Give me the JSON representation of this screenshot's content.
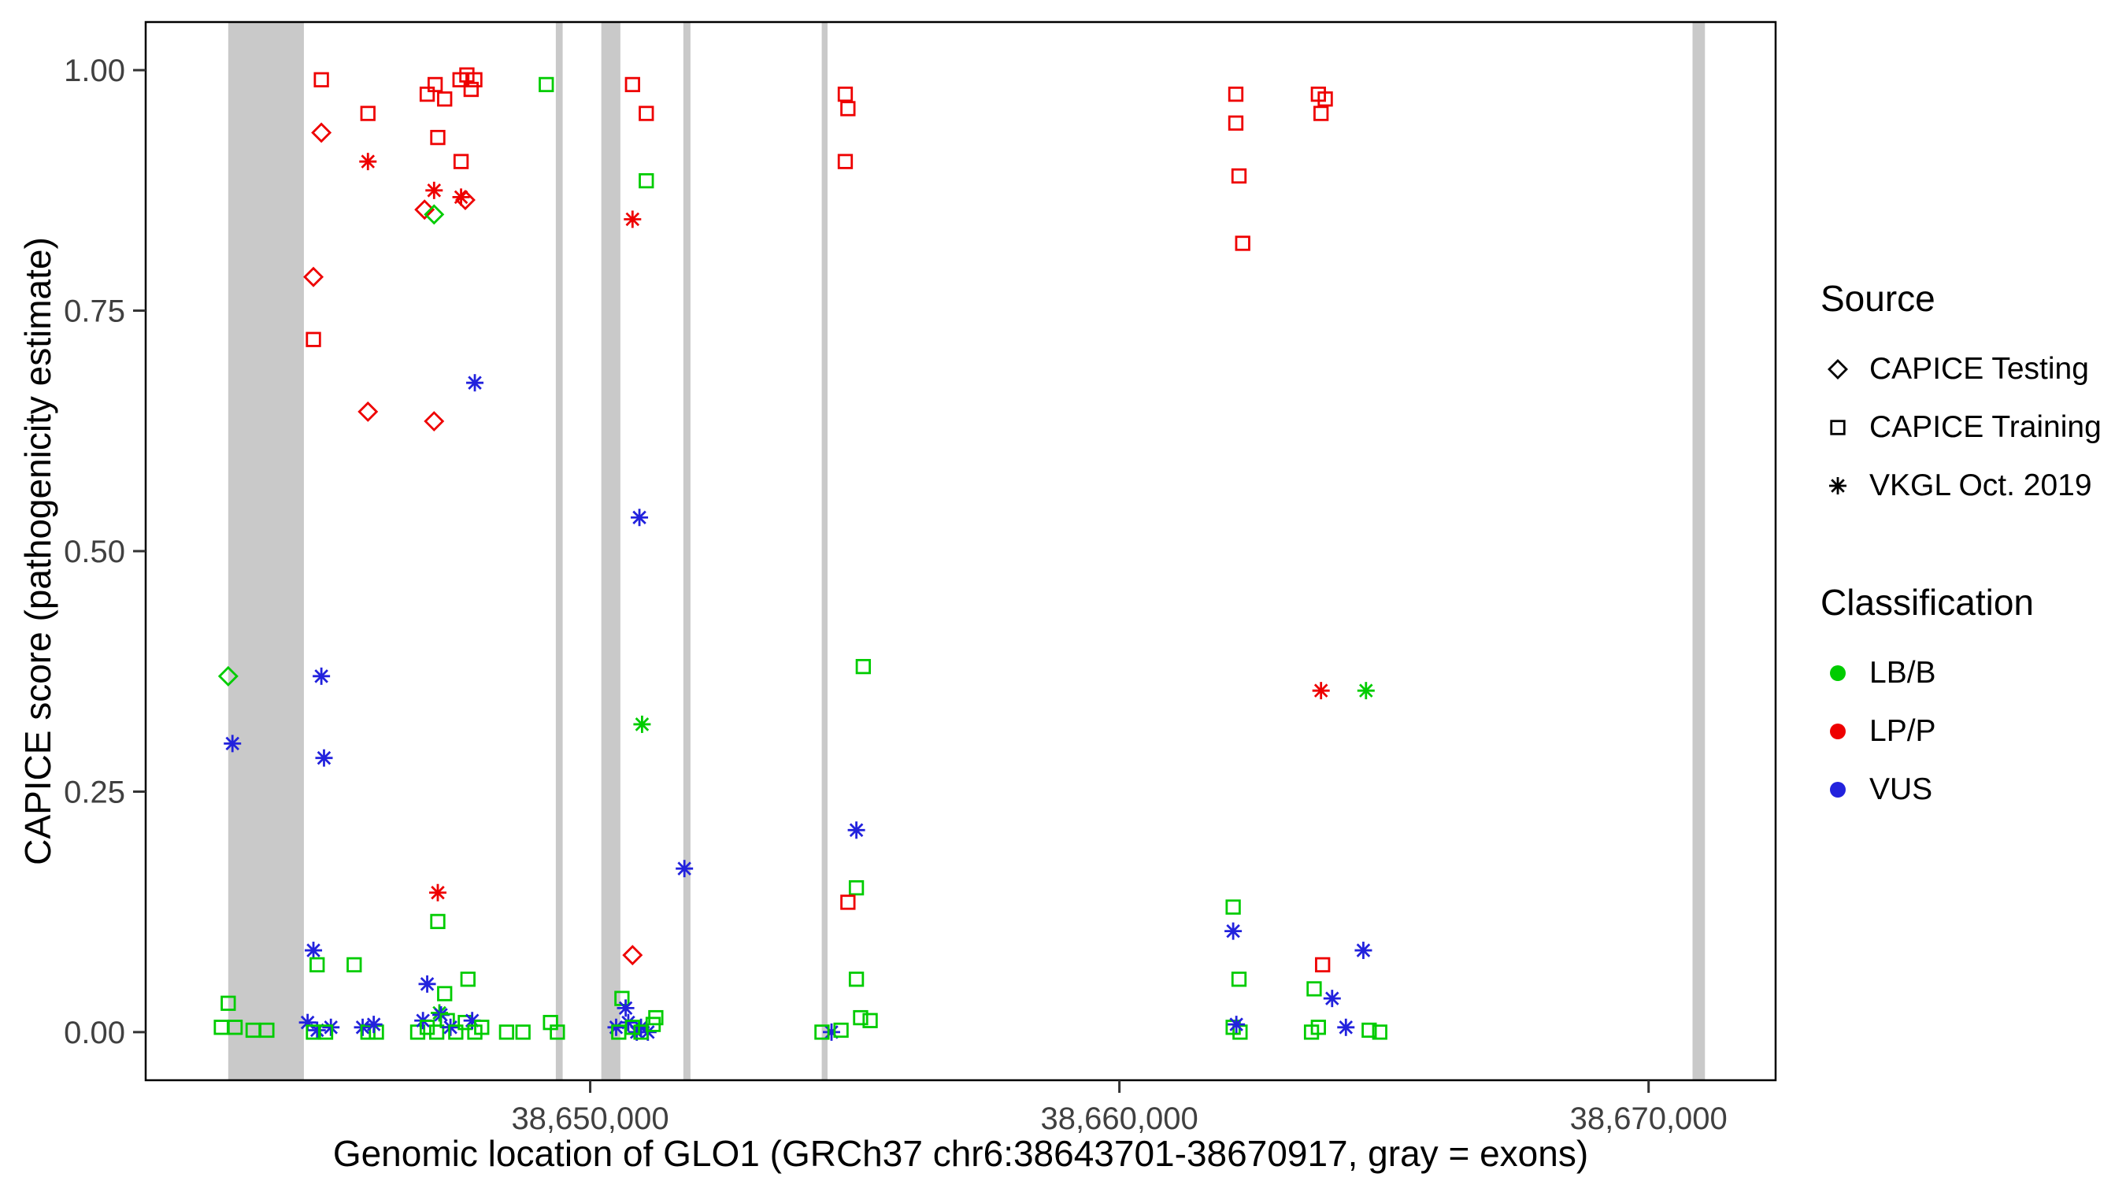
{
  "figure": {
    "legend": {
      "source": {
        "title": "Source",
        "items": [
          {
            "label": "CAPICE Testing",
            "shape": "diamond"
          },
          {
            "label": "CAPICE Training",
            "shape": "square"
          },
          {
            "label": "VKGL Oct. 2019",
            "shape": "asterisk"
          }
        ]
      },
      "classification": {
        "title": "Classification",
        "items": [
          {
            "label": "LB/B",
            "color": "#00CC00"
          },
          {
            "label": "LP/P",
            "color": "#EE0000"
          },
          {
            "label": "VUS",
            "color": "#2222DD"
          }
        ]
      }
    }
  },
  "chart_data": {
    "type": "scatter",
    "title": "",
    "xlabel": "Genomic location of GLO1 (GRCh37 chr6:38643701-38670917, gray = exons)",
    "ylabel": "CAPICE score (pathogenicity estimate)",
    "x_tick_labels": [
      "38,650,000",
      "38,660,000",
      "38,670,000"
    ],
    "x_tick_values": [
      38650000,
      38660000,
      38670000
    ],
    "y_tick_labels": [
      "0.00",
      "0.25",
      "0.50",
      "0.75",
      "1.00"
    ],
    "y_tick_values": [
      0,
      0.25,
      0.5,
      0.75,
      1.0
    ],
    "xlim": [
      38641600,
      38672400
    ],
    "ylim": [
      -0.05,
      1.05
    ],
    "grid": false,
    "legend_position": "right",
    "exon_color": "#C9C9C9",
    "exons": [
      [
        38643160,
        38644590
      ],
      [
        38649350,
        38649480
      ],
      [
        38650210,
        38650570
      ],
      [
        38651760,
        38651895
      ],
      [
        38654375,
        38654485
      ],
      [
        38670830,
        38671065
      ]
    ],
    "colors": {
      "LB/B": "#00CC00",
      "LP/P": "#EE0000",
      "VUS": "#2222DD"
    },
    "shapes": {
      "CAPICE Testing": "diamond",
      "CAPICE Training": "square",
      "VKGL Oct. 2019": "asterisk"
    },
    "points": [
      {
        "x": 38643160,
        "y": 0.37,
        "source": "CAPICE Testing",
        "class": "LB/B"
      },
      {
        "x": 38643240,
        "y": 0.3,
        "source": "VKGL Oct. 2019",
        "class": "VUS"
      },
      {
        "x": 38643160,
        "y": 0.03,
        "source": "CAPICE Training",
        "class": "LB/B"
      },
      {
        "x": 38643030,
        "y": 0.005,
        "source": "CAPICE Training",
        "class": "LB/B"
      },
      {
        "x": 38643290,
        "y": 0.005,
        "source": "CAPICE Training",
        "class": "LB/B"
      },
      {
        "x": 38643630,
        "y": 0.002,
        "source": "CAPICE Training",
        "class": "LB/B"
      },
      {
        "x": 38643890,
        "y": 0.002,
        "source": "CAPICE Training",
        "class": "LB/B"
      },
      {
        "x": 38644920,
        "y": 0.99,
        "source": "CAPICE Training",
        "class": "LP/P"
      },
      {
        "x": 38644920,
        "y": 0.935,
        "source": "CAPICE Testing",
        "class": "LP/P"
      },
      {
        "x": 38644770,
        "y": 0.785,
        "source": "CAPICE Testing",
        "class": "LP/P"
      },
      {
        "x": 38644770,
        "y": 0.72,
        "source": "CAPICE Training",
        "class": "LP/P"
      },
      {
        "x": 38644920,
        "y": 0.37,
        "source": "VKGL Oct. 2019",
        "class": "VUS"
      },
      {
        "x": 38644970,
        "y": 0.285,
        "source": "VKGL Oct. 2019",
        "class": "VUS"
      },
      {
        "x": 38644770,
        "y": 0.085,
        "source": "VKGL Oct. 2019",
        "class": "VUS"
      },
      {
        "x": 38644840,
        "y": 0.07,
        "source": "CAPICE Training",
        "class": "LB/B"
      },
      {
        "x": 38644660,
        "y": 0.01,
        "source": "VKGL Oct. 2019",
        "class": "VUS"
      },
      {
        "x": 38644840,
        "y": 0.002,
        "source": "VKGL Oct. 2019",
        "class": "VUS"
      },
      {
        "x": 38645100,
        "y": 0.005,
        "source": "VKGL Oct. 2019",
        "class": "VUS"
      },
      {
        "x": 38644770,
        "y": 0.0,
        "source": "CAPICE Training",
        "class": "LB/B"
      },
      {
        "x": 38645000,
        "y": 0.0,
        "source": "CAPICE Training",
        "class": "LB/B"
      },
      {
        "x": 38645800,
        "y": 0.955,
        "source": "CAPICE Training",
        "class": "LP/P"
      },
      {
        "x": 38645800,
        "y": 0.905,
        "source": "VKGL Oct. 2019",
        "class": "LP/P"
      },
      {
        "x": 38645800,
        "y": 0.645,
        "source": "CAPICE Testing",
        "class": "LP/P"
      },
      {
        "x": 38645540,
        "y": 0.07,
        "source": "CAPICE Training",
        "class": "LB/B"
      },
      {
        "x": 38645700,
        "y": 0.005,
        "source": "VKGL Oct. 2019",
        "class": "VUS"
      },
      {
        "x": 38645800,
        "y": 0.0,
        "source": "CAPICE Training",
        "class": "LB/B"
      },
      {
        "x": 38645960,
        "y": 0.0,
        "source": "CAPICE Training",
        "class": "LB/B"
      },
      {
        "x": 38645910,
        "y": 0.008,
        "source": "VKGL Oct. 2019",
        "class": "VUS"
      },
      {
        "x": 38646920,
        "y": 0.975,
        "source": "CAPICE Training",
        "class": "LP/P"
      },
      {
        "x": 38647070,
        "y": 0.985,
        "source": "CAPICE Training",
        "class": "LP/P"
      },
      {
        "x": 38647250,
        "y": 0.97,
        "source": "CAPICE Training",
        "class": "LP/P"
      },
      {
        "x": 38647540,
        "y": 0.99,
        "source": "CAPICE Training",
        "class": "LP/P"
      },
      {
        "x": 38647670,
        "y": 0.995,
        "source": "CAPICE Training",
        "class": "LP/P"
      },
      {
        "x": 38647750,
        "y": 0.98,
        "source": "CAPICE Training",
        "class": "LP/P"
      },
      {
        "x": 38647820,
        "y": 0.99,
        "source": "CAPICE Training",
        "class": "LP/P"
      },
      {
        "x": 38647120,
        "y": 0.93,
        "source": "CAPICE Training",
        "class": "LP/P"
      },
      {
        "x": 38647560,
        "y": 0.905,
        "source": "CAPICE Training",
        "class": "LP/P"
      },
      {
        "x": 38647050,
        "y": 0.875,
        "source": "VKGL Oct. 2019",
        "class": "LP/P"
      },
      {
        "x": 38647560,
        "y": 0.868,
        "source": "VKGL Oct. 2019",
        "class": "LP/P"
      },
      {
        "x": 38647640,
        "y": 0.865,
        "source": "CAPICE Testing",
        "class": "LP/P"
      },
      {
        "x": 38646870,
        "y": 0.855,
        "source": "CAPICE Testing",
        "class": "LP/P"
      },
      {
        "x": 38647050,
        "y": 0.85,
        "source": "CAPICE Testing",
        "class": "LB/B"
      },
      {
        "x": 38647050,
        "y": 0.635,
        "source": "CAPICE Testing",
        "class": "LP/P"
      },
      {
        "x": 38647820,
        "y": 0.675,
        "source": "VKGL Oct. 2019",
        "class": "VUS"
      },
      {
        "x": 38647120,
        "y": 0.145,
        "source": "VKGL Oct. 2019",
        "class": "LP/P"
      },
      {
        "x": 38647120,
        "y": 0.115,
        "source": "CAPICE Training",
        "class": "LB/B"
      },
      {
        "x": 38646920,
        "y": 0.05,
        "source": "VKGL Oct. 2019",
        "class": "VUS"
      },
      {
        "x": 38647690,
        "y": 0.055,
        "source": "CAPICE Training",
        "class": "LB/B"
      },
      {
        "x": 38647250,
        "y": 0.04,
        "source": "CAPICE Training",
        "class": "LB/B"
      },
      {
        "x": 38647150,
        "y": 0.02,
        "source": "VKGL Oct. 2019",
        "class": "LB/B"
      },
      {
        "x": 38646740,
        "y": 0.0,
        "source": "CAPICE Training",
        "class": "LB/B"
      },
      {
        "x": 38646840,
        "y": 0.012,
        "source": "VKGL Oct. 2019",
        "class": "VUS"
      },
      {
        "x": 38646920,
        "y": 0.005,
        "source": "CAPICE Training",
        "class": "LB/B"
      },
      {
        "x": 38647100,
        "y": 0.0,
        "source": "CAPICE Training",
        "class": "LB/B"
      },
      {
        "x": 38647180,
        "y": 0.018,
        "source": "VKGL Oct. 2019",
        "class": "VUS"
      },
      {
        "x": 38647300,
        "y": 0.012,
        "source": "CAPICE Training",
        "class": "LB/B"
      },
      {
        "x": 38647360,
        "y": 0.005,
        "source": "VKGL Oct. 2019",
        "class": "VUS"
      },
      {
        "x": 38647460,
        "y": 0.0,
        "source": "CAPICE Training",
        "class": "LB/B"
      },
      {
        "x": 38647640,
        "y": 0.01,
        "source": "CAPICE Training",
        "class": "LB/B"
      },
      {
        "x": 38647770,
        "y": 0.012,
        "source": "VKGL Oct. 2019",
        "class": "VUS"
      },
      {
        "x": 38647820,
        "y": 0.0,
        "source": "CAPICE Training",
        "class": "LB/B"
      },
      {
        "x": 38647950,
        "y": 0.005,
        "source": "CAPICE Training",
        "class": "LB/B"
      },
      {
        "x": 38648420,
        "y": 0.0,
        "source": "CAPICE Training",
        "class": "LB/B"
      },
      {
        "x": 38648730,
        "y": 0.0,
        "source": "CAPICE Training",
        "class": "LB/B"
      },
      {
        "x": 38649170,
        "y": 0.985,
        "source": "CAPICE Training",
        "class": "LB/B"
      },
      {
        "x": 38649250,
        "y": 0.01,
        "source": "CAPICE Training",
        "class": "LB/B"
      },
      {
        "x": 38649380,
        "y": 0.0,
        "source": "CAPICE Training",
        "class": "LB/B"
      },
      {
        "x": 38650800,
        "y": 0.985,
        "source": "CAPICE Training",
        "class": "LP/P"
      },
      {
        "x": 38651060,
        "y": 0.955,
        "source": "CAPICE Training",
        "class": "LP/P"
      },
      {
        "x": 38651060,
        "y": 0.885,
        "source": "CAPICE Training",
        "class": "LB/B"
      },
      {
        "x": 38650800,
        "y": 0.845,
        "source": "VKGL Oct. 2019",
        "class": "LP/P"
      },
      {
        "x": 38650930,
        "y": 0.535,
        "source": "VKGL Oct. 2019",
        "class": "VUS"
      },
      {
        "x": 38650980,
        "y": 0.32,
        "source": "VKGL Oct. 2019",
        "class": "LB/B"
      },
      {
        "x": 38650800,
        "y": 0.08,
        "source": "CAPICE Testing",
        "class": "LP/P"
      },
      {
        "x": 38650600,
        "y": 0.035,
        "source": "CAPICE Training",
        "class": "LB/B"
      },
      {
        "x": 38650670,
        "y": 0.025,
        "source": "VKGL Oct. 2019",
        "class": "VUS"
      },
      {
        "x": 38650490,
        "y": 0.005,
        "source": "VKGL Oct. 2019",
        "class": "VUS"
      },
      {
        "x": 38650720,
        "y": 0.01,
        "source": "VKGL Oct. 2019",
        "class": "VUS"
      },
      {
        "x": 38650880,
        "y": 0.0,
        "source": "VKGL Oct. 2019",
        "class": "VUS"
      },
      {
        "x": 38650960,
        "y": 0.005,
        "source": "VKGL Oct. 2019",
        "class": "VUS"
      },
      {
        "x": 38651090,
        "y": 0.0,
        "source": "VKGL Oct. 2019",
        "class": "VUS"
      },
      {
        "x": 38650540,
        "y": 0.0,
        "source": "CAPICE Training",
        "class": "LB/B"
      },
      {
        "x": 38650800,
        "y": 0.005,
        "source": "CAPICE Training",
        "class": "LB/B"
      },
      {
        "x": 38650960,
        "y": 0.0,
        "source": "CAPICE Training",
        "class": "LB/B"
      },
      {
        "x": 38651190,
        "y": 0.008,
        "source": "CAPICE Training",
        "class": "LB/B"
      },
      {
        "x": 38651240,
        "y": 0.015,
        "source": "CAPICE Training",
        "class": "LB/B"
      },
      {
        "x": 38651780,
        "y": 0.17,
        "source": "VKGL Oct. 2019",
        "class": "VUS"
      },
      {
        "x": 38654820,
        "y": 0.975,
        "source": "CAPICE Training",
        "class": "LP/P"
      },
      {
        "x": 38654870,
        "y": 0.96,
        "source": "CAPICE Training",
        "class": "LP/P"
      },
      {
        "x": 38654820,
        "y": 0.905,
        "source": "CAPICE Training",
        "class": "LP/P"
      },
      {
        "x": 38655160,
        "y": 0.38,
        "source": "CAPICE Training",
        "class": "LB/B"
      },
      {
        "x": 38655030,
        "y": 0.21,
        "source": "VKGL Oct. 2019",
        "class": "VUS"
      },
      {
        "x": 38655030,
        "y": 0.15,
        "source": "CAPICE Training",
        "class": "LB/B"
      },
      {
        "x": 38654870,
        "y": 0.135,
        "source": "CAPICE Training",
        "class": "LP/P"
      },
      {
        "x": 38655030,
        "y": 0.055,
        "source": "CAPICE Training",
        "class": "LB/B"
      },
      {
        "x": 38654560,
        "y": 0.0,
        "source": "VKGL Oct. 2019",
        "class": "VUS"
      },
      {
        "x": 38654380,
        "y": 0.0,
        "source": "CAPICE Training",
        "class": "LB/B"
      },
      {
        "x": 38654740,
        "y": 0.002,
        "source": "CAPICE Training",
        "class": "LB/B"
      },
      {
        "x": 38655110,
        "y": 0.015,
        "source": "CAPICE Training",
        "class": "LB/B"
      },
      {
        "x": 38655290,
        "y": 0.012,
        "source": "CAPICE Training",
        "class": "LB/B"
      },
      {
        "x": 38662200,
        "y": 0.975,
        "source": "CAPICE Training",
        "class": "LP/P"
      },
      {
        "x": 38662200,
        "y": 0.945,
        "source": "CAPICE Training",
        "class": "LP/P"
      },
      {
        "x": 38662260,
        "y": 0.89,
        "source": "CAPICE Training",
        "class": "LP/P"
      },
      {
        "x": 38662330,
        "y": 0.82,
        "source": "CAPICE Training",
        "class": "LP/P"
      },
      {
        "x": 38662150,
        "y": 0.13,
        "source": "CAPICE Training",
        "class": "LB/B"
      },
      {
        "x": 38662150,
        "y": 0.105,
        "source": "VKGL Oct. 2019",
        "class": "VUS"
      },
      {
        "x": 38662260,
        "y": 0.055,
        "source": "CAPICE Training",
        "class": "LB/B"
      },
      {
        "x": 38662150,
        "y": 0.005,
        "source": "CAPICE Training",
        "class": "LB/B"
      },
      {
        "x": 38662280,
        "y": 0.0,
        "source": "CAPICE Training",
        "class": "LB/B"
      },
      {
        "x": 38662210,
        "y": 0.008,
        "source": "VKGL Oct. 2019",
        "class": "VUS"
      },
      {
        "x": 38663760,
        "y": 0.975,
        "source": "CAPICE Training",
        "class": "LP/P"
      },
      {
        "x": 38663890,
        "y": 0.97,
        "source": "CAPICE Training",
        "class": "LP/P"
      },
      {
        "x": 38663810,
        "y": 0.955,
        "source": "CAPICE Training",
        "class": "LP/P"
      },
      {
        "x": 38663810,
        "y": 0.355,
        "source": "VKGL Oct. 2019",
        "class": "LP/P"
      },
      {
        "x": 38664660,
        "y": 0.355,
        "source": "VKGL Oct. 2019",
        "class": "LB/B"
      },
      {
        "x": 38663840,
        "y": 0.07,
        "source": "CAPICE Training",
        "class": "LP/P"
      },
      {
        "x": 38663680,
        "y": 0.045,
        "source": "CAPICE Training",
        "class": "LB/B"
      },
      {
        "x": 38664020,
        "y": 0.035,
        "source": "VKGL Oct. 2019",
        "class": "VUS"
      },
      {
        "x": 38664610,
        "y": 0.085,
        "source": "VKGL Oct. 2019",
        "class": "VUS"
      },
      {
        "x": 38663630,
        "y": 0.0,
        "source": "CAPICE Training",
        "class": "LB/B"
      },
      {
        "x": 38663760,
        "y": 0.005,
        "source": "CAPICE Training",
        "class": "LB/B"
      },
      {
        "x": 38664280,
        "y": 0.005,
        "source": "VKGL Oct. 2019",
        "class": "VUS"
      },
      {
        "x": 38664920,
        "y": 0.0,
        "source": "CAPICE Training",
        "class": "LB/B"
      },
      {
        "x": 38664720,
        "y": 0.002,
        "source": "CAPICE Training",
        "class": "LB/B"
      }
    ]
  }
}
